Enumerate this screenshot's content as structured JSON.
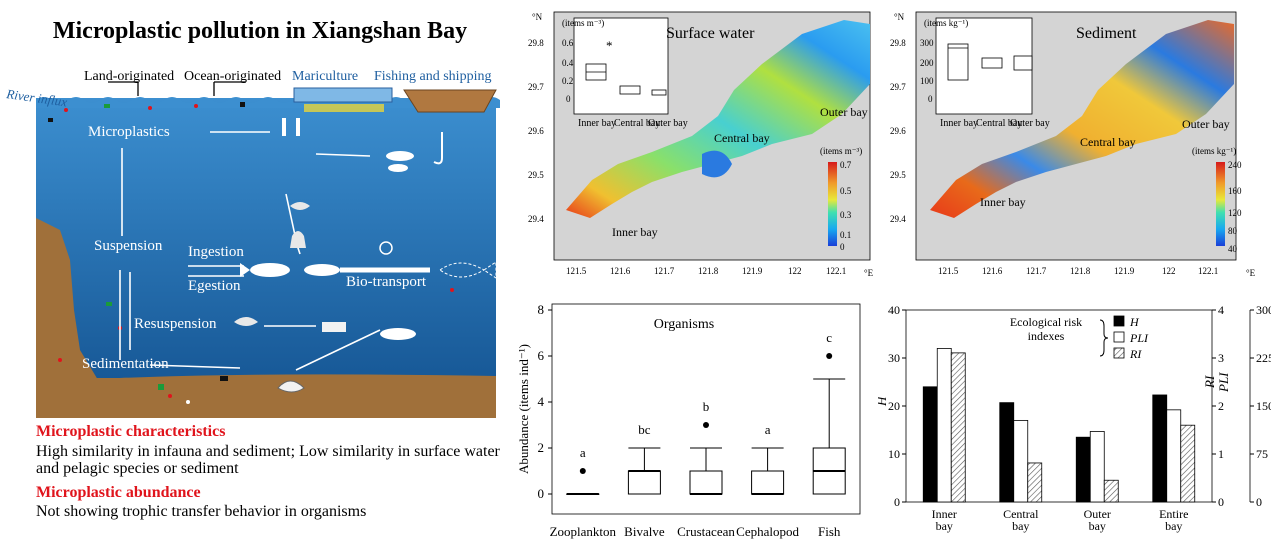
{
  "diagram": {
    "title": "Microplastic pollution in Xiangshan Bay",
    "sources": {
      "river": "River influx",
      "land": "Land-originated",
      "ocean": "Ocean-originated",
      "mariculture": "Mariculture",
      "fishing": "Fishing and shipping"
    },
    "labels": {
      "microplastics": "Microplastics",
      "suspension": "Suspension",
      "ingestion": "Ingestion",
      "egestion": "Egestion",
      "bio_transport": "Bio-transport",
      "resuspension": "Resuspension",
      "sedimentation": "Sedimentation"
    },
    "colors": {
      "sea": "#1f6fb4",
      "seabed": "#a0703a",
      "accent": "#e0141c"
    }
  },
  "summary": {
    "characteristics_heading": "Microplastic characteristics",
    "characteristics_text": "High similarity in infauna and sediment; Low similarity in surface water and pelagic species or sediment",
    "abundance_heading": "Microplastic abundance",
    "abundance_text": "Not showing trophic transfer behavior in organisms"
  },
  "maps": [
    {
      "title": "Surface water",
      "unit_label": "(items m⁻³)",
      "colorbar_ticks": [
        "0.7",
        "0.5",
        "0.3",
        "0.1",
        "0"
      ],
      "regions": {
        "inner": "Inner bay",
        "central": "Central bay",
        "outer": "Outer bay"
      },
      "lat_ticks": [
        "29.8",
        "29.7",
        "29.6",
        "29.5",
        "29.4"
      ],
      "lon_ticks": [
        "121.5",
        "121.6",
        "121.7",
        "121.8",
        "121.9",
        "122",
        "122.1"
      ],
      "lat_unit": "°N",
      "lon_unit": "°E",
      "inset": {
        "unit": "(items m⁻³)",
        "y_ticks": [
          "0.6",
          "0.4",
          "0.2",
          "0"
        ],
        "categories": [
          "Inner bay",
          "Central bay",
          "Outer bay"
        ],
        "marker": "*"
      }
    },
    {
      "title": "Sediment",
      "unit_label": "(items kg⁻¹)",
      "colorbar_ticks": [
        "240",
        "160",
        "120",
        "80",
        "40"
      ],
      "regions": {
        "inner": "Inner bay",
        "central": "Central bay",
        "outer": "Outer bay"
      },
      "lat_ticks": [
        "29.8",
        "29.7",
        "29.6",
        "29.5",
        "29.4"
      ],
      "lon_ticks": [
        "121.5",
        "121.6",
        "121.7",
        "121.8",
        "121.9",
        "122",
        "122.1"
      ],
      "lat_unit": "°N",
      "lon_unit": "°E",
      "inset": {
        "unit": "(items kg⁻¹)",
        "y_ticks": [
          "300",
          "200",
          "100",
          "0"
        ],
        "categories": [
          "Inner bay",
          "Central bay",
          "Outer bay"
        ]
      }
    }
  ],
  "chart_data": [
    {
      "type": "box",
      "title": "Organisms",
      "ylabel": "Abundance (items ind⁻¹)",
      "ylim": [
        0,
        8
      ],
      "yticks": [
        0,
        2,
        4,
        6,
        8
      ],
      "categories": [
        "Zooplankton",
        "Bivalve",
        "Crustacean",
        "Cephalopod",
        "Fish"
      ],
      "boxes": [
        {
          "min": 0,
          "q1": 0,
          "median": 0,
          "q3": 0,
          "max": 0,
          "outliers": [
            1
          ]
        },
        {
          "min": 0,
          "q1": 0,
          "median": 1,
          "q3": 1,
          "max": 2,
          "outliers": []
        },
        {
          "min": 0,
          "q1": 0,
          "median": 0,
          "q3": 1,
          "max": 2,
          "outliers": [
            3
          ]
        },
        {
          "min": 0,
          "q1": 0,
          "median": 0,
          "q3": 1,
          "max": 2,
          "outliers": []
        },
        {
          "min": 0,
          "q1": 0,
          "median": 1,
          "q3": 2,
          "max": 5,
          "outliers": [
            6
          ]
        }
      ],
      "letters": [
        "a",
        "bc",
        "b",
        "a",
        "c"
      ]
    },
    {
      "type": "bar",
      "categories": [
        "Inner bay",
        "Central bay",
        "Outer bay",
        "Entire bay"
      ],
      "legend_title": "Ecological risk indexes",
      "series": [
        {
          "name": "H",
          "axis": "H",
          "values": [
            24,
            20.7,
            13.5,
            22.3
          ]
        },
        {
          "name": "PLI",
          "axis": "PLI",
          "values": [
            3.2,
            1.7,
            1.47,
            1.92
          ]
        },
        {
          "name": "RI",
          "axis": "RI",
          "values": [
            233,
            61,
            34,
            120
          ]
        }
      ],
      "axes": {
        "H": {
          "label": "H",
          "lim": [
            0,
            40
          ],
          "ticks": [
            0,
            10,
            20,
            30,
            40
          ]
        },
        "PLI": {
          "label": "PLI",
          "lim": [
            0,
            4
          ],
          "ticks": [
            0,
            1,
            2,
            3,
            4
          ]
        },
        "RI": {
          "label": "RI",
          "lim": [
            0,
            300
          ],
          "ticks": [
            0,
            75,
            150,
            225,
            300
          ]
        }
      }
    }
  ]
}
